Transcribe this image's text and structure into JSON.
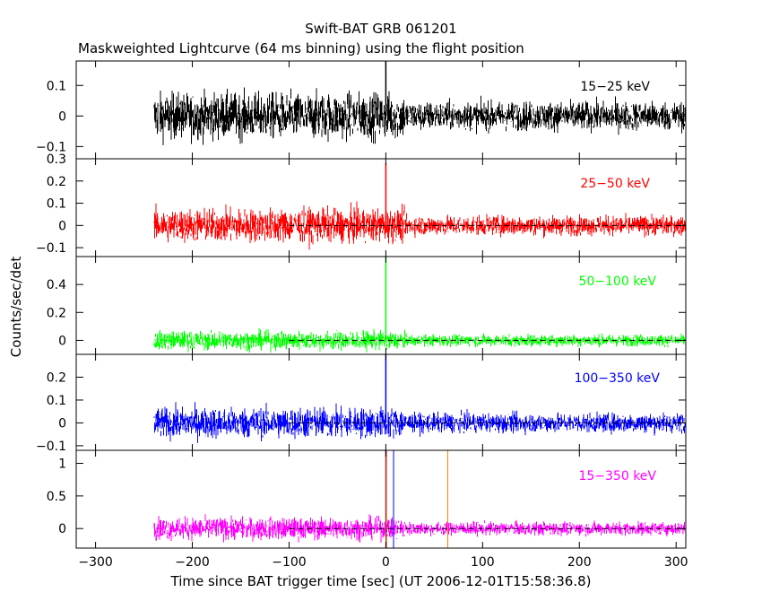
{
  "chart_data": {
    "type": "line",
    "title": "Swift-BAT GRB 061201",
    "subtitle": "Maskweighted Lightcurve (64 ms binning) using the flight position",
    "xlabel": "Time since BAT trigger time [sec] (UT 2006-12-01T15:58:36.8)",
    "ylabel": "Counts/sec/det",
    "xlim": [
      -320,
      310
    ],
    "x_ticks": [
      -300,
      -200,
      -100,
      0,
      100,
      200,
      300
    ],
    "x_tick_labels": [
      "−300",
      "−200",
      "−100",
      "0",
      "100",
      "200",
      "300"
    ],
    "data_start": -240,
    "trigger_time": 0,
    "grid": false,
    "panels": [
      {
        "band": "15-25 keV",
        "label": "15−25 keV",
        "color": "#000000",
        "ylim": [
          -0.14,
          0.18
        ],
        "y_ticks": [
          -0.1,
          0,
          0.1
        ],
        "y_tick_labels": [
          "−0.1",
          "0",
          "0.1"
        ],
        "baseline": 0.0,
        "noise_pre": 0.045,
        "noise_post": 0.028,
        "spike_peak": 0.18,
        "zero_line": false
      },
      {
        "band": "25-50 keV",
        "label": "25−50 keV",
        "color": "#ff0000",
        "ylim": [
          -0.14,
          0.3
        ],
        "y_ticks": [
          -0.1,
          0,
          0.1,
          0.2,
          0.3
        ],
        "y_tick_labels": [
          "−0.1",
          "0",
          "0.1",
          "0.2",
          "0.3"
        ],
        "baseline": 0.0,
        "noise_pre": 0.045,
        "noise_post": 0.026,
        "spike_peak": 0.28,
        "zero_line": true
      },
      {
        "band": "50-100 keV",
        "label": "50−100 keV",
        "color": "#00ff00",
        "ylim": [
          -0.1,
          0.6
        ],
        "y_ticks": [
          0,
          0.2,
          0.4
        ],
        "y_tick_labels": [
          "0",
          "0.2",
          "0.4"
        ],
        "baseline": 0.0,
        "noise_pre": 0.04,
        "noise_post": 0.025,
        "spike_peak": 0.6,
        "zero_line": true
      },
      {
        "band": "100-350 keV",
        "label": "100−350 keV",
        "color": "#0000ff",
        "ylim": [
          -0.12,
          0.3
        ],
        "y_ticks": [
          -0.1,
          0,
          0.1,
          0.2
        ],
        "y_tick_labels": [
          "−0.1",
          "0",
          "0.1",
          "0.2"
        ],
        "baseline": 0.0,
        "noise_pre": 0.04,
        "noise_post": 0.025,
        "spike_peak": 0.3,
        "zero_line": true
      },
      {
        "band": "15-350 keV",
        "label": "15−350 keV",
        "color": "#ff00ff",
        "ylim": [
          -0.3,
          1.2
        ],
        "y_ticks": [
          0,
          0.5,
          1
        ],
        "y_tick_labels": [
          "0",
          "0.5",
          "1"
        ],
        "baseline": 0.0,
        "noise_pre": 0.1,
        "noise_post": 0.06,
        "spike_peak": 1.2,
        "zero_line": true
      }
    ],
    "markers": [
      {
        "x": 0,
        "color": "#00cc00"
      },
      {
        "x": 0.5,
        "color": "#ff0000"
      },
      {
        "x": 8,
        "color": "#0000ff"
      },
      {
        "x": 64,
        "color": "#ff8000"
      }
    ]
  }
}
